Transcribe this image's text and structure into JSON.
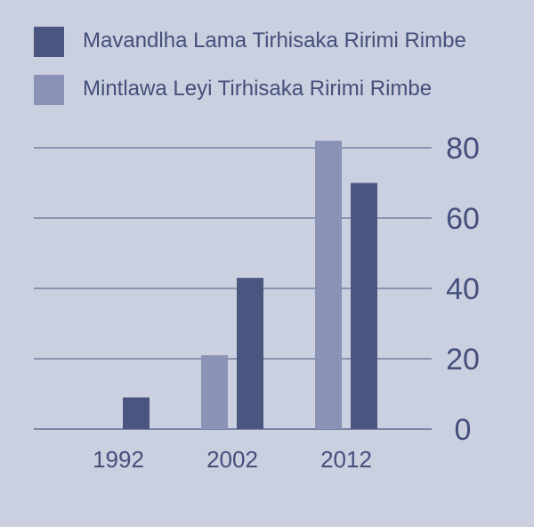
{
  "chart_data": {
    "type": "bar",
    "categories": [
      "1992",
      "2002",
      "2012"
    ],
    "series": [
      {
        "name": "Mintlawa Leyi Tirhisaka Ririmi Rimbe",
        "values": [
          null,
          21,
          82
        ],
        "color": "#8a92b6"
      },
      {
        "name": "Mavandlha Lama Tirhisaka Ririmi Rimbe",
        "values": [
          9,
          43,
          70
        ],
        "color": "#4a5680"
      }
    ],
    "yticks": [
      0,
      20,
      40,
      60,
      80
    ],
    "ylim": [
      0,
      80
    ],
    "yaxis_side": "right",
    "grid": true,
    "legend_position": "top-left"
  },
  "legend": [
    {
      "label": "Mavandlha Lama Tirhisaka Ririmi Rimbe",
      "color": "#4a5680"
    },
    {
      "label": "Mintlawa Leyi Tirhisaka Ririmi Rimbe",
      "color": "#8a92b6"
    }
  ],
  "colors": {
    "background": "#cbd0e0",
    "grid": "#4a5680",
    "text": "#444f7b"
  }
}
